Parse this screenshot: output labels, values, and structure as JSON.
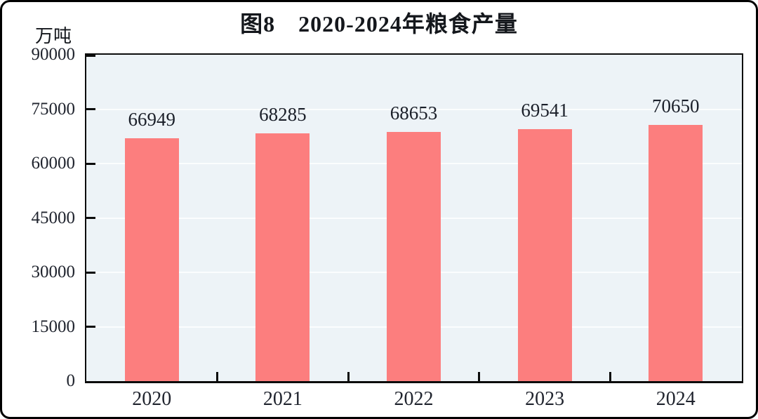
{
  "chart_data": {
    "type": "bar",
    "title": "图8　2020-2024年粮食产量",
    "unit_label": "万吨",
    "categories": [
      "2020",
      "2021",
      "2022",
      "2023",
      "2024"
    ],
    "values": [
      66949,
      68285,
      68653,
      69541,
      70650
    ],
    "value_labels": [
      "66949",
      "68285",
      "68653",
      "69541",
      "70650"
    ],
    "xlabel": "",
    "ylabel": "万吨",
    "ylim": [
      0,
      90000
    ],
    "yticks": [
      0,
      15000,
      30000,
      45000,
      60000,
      75000,
      90000
    ],
    "ytick_labels": [
      "0",
      "15000",
      "30000",
      "45000",
      "60000",
      "75000",
      "90000"
    ],
    "grid": "horizontal",
    "legend": "none",
    "colors": {
      "bar": "#FC7E7E",
      "plot_background": "#EDF3F7",
      "gridline": "#FBFDFE",
      "axis": "#0C0C0C",
      "text": "#20242E",
      "page_background": "#FFFFFF",
      "outer_border": "#000000"
    }
  }
}
